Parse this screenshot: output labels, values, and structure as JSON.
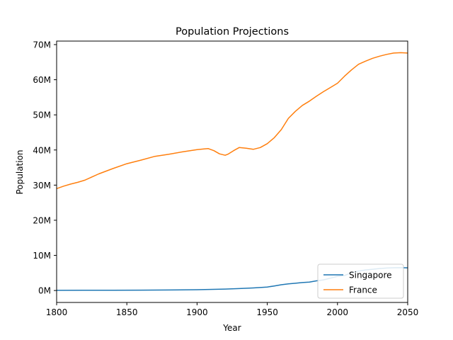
{
  "chart_data": {
    "type": "line",
    "title": "Population Projections",
    "xlabel": "Year",
    "ylabel": "Population",
    "xlim": [
      1800,
      2050
    ],
    "ylim": [
      -3400000,
      71000000
    ],
    "x_ticks": [
      1800,
      1850,
      1900,
      1950,
      2000,
      2050
    ],
    "x_tick_labels": [
      "1800",
      "1850",
      "1900",
      "1950",
      "2000",
      "2050"
    ],
    "y_ticks": [
      0,
      10000000,
      20000000,
      30000000,
      40000000,
      50000000,
      60000000,
      70000000
    ],
    "y_tick_labels": [
      "0M",
      "10M",
      "20M",
      "30M",
      "40M",
      "50M",
      "60M",
      "70M"
    ],
    "grid": false,
    "legend_position": "lower-right",
    "series": [
      {
        "name": "Singapore",
        "color": "#1f77b4",
        "x": [
          1800,
          1820,
          1840,
          1860,
          1880,
          1900,
          1920,
          1930,
          1940,
          1950,
          1955,
          1960,
          1965,
          1970,
          1975,
          1980,
          1985,
          1990,
          1995,
          2000,
          2005,
          2010,
          2015,
          2020,
          2025,
          2030,
          2035,
          2040,
          2045,
          2050
        ],
        "values": [
          50000,
          60000,
          80000,
          100000,
          150000,
          230000,
          420000,
          560000,
          730000,
          1000000,
          1300000,
          1650000,
          1890000,
          2070000,
          2260000,
          2410000,
          2740000,
          3040000,
          3520000,
          4030000,
          4270000,
          5080000,
          5540000,
          5850000,
          6050000,
          6250000,
          6400000,
          6480000,
          6500000,
          6450000
        ]
      },
      {
        "name": "France",
        "color": "#ff7f0e",
        "x": [
          1800,
          1805,
          1810,
          1815,
          1820,
          1830,
          1840,
          1850,
          1860,
          1870,
          1880,
          1890,
          1900,
          1905,
          1908,
          1912,
          1916,
          1920,
          1922,
          1926,
          1930,
          1935,
          1940,
          1945,
          1950,
          1955,
          1960,
          1965,
          1970,
          1975,
          1980,
          1985,
          1990,
          1995,
          2000,
          2005,
          2010,
          2015,
          2020,
          2025,
          2030,
          2035,
          2040,
          2045,
          2050
        ],
        "values": [
          29000000,
          29700000,
          30300000,
          30800000,
          31400000,
          33200000,
          34700000,
          36100000,
          37100000,
          38200000,
          38800000,
          39500000,
          40100000,
          40300000,
          40400000,
          39800000,
          38900000,
          38500000,
          38800000,
          39800000,
          40700000,
          40500000,
          40200000,
          40700000,
          41800000,
          43500000,
          45800000,
          49000000,
          51000000,
          52700000,
          53900000,
          55300000,
          56600000,
          57800000,
          59000000,
          61000000,
          62800000,
          64400000,
          65300000,
          66100000,
          66700000,
          67200000,
          67600000,
          67700000,
          67600000
        ]
      }
    ]
  }
}
